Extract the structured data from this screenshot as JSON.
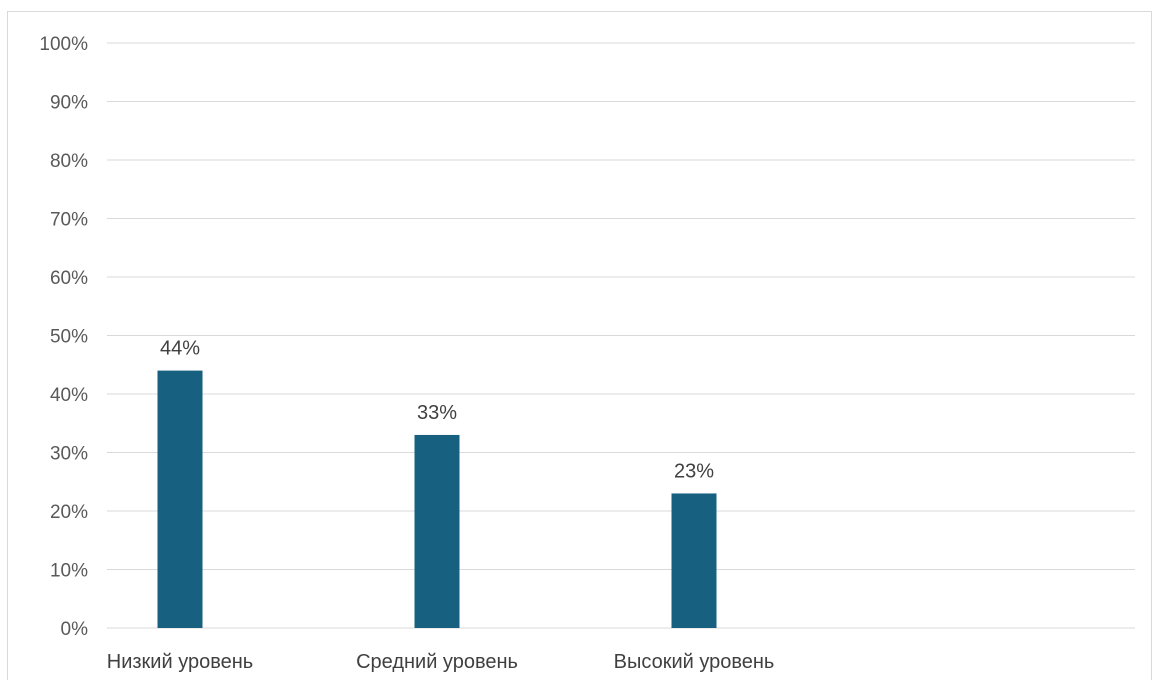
{
  "chart_data": {
    "type": "bar",
    "categories": [
      "Низкий уровень",
      "Средний уровень",
      "Высокий уровень"
    ],
    "values": [
      44,
      33,
      23
    ],
    "data_labels": [
      "44%",
      "33%",
      "23%"
    ],
    "ylim": [
      0,
      100
    ],
    "yticks": [
      0,
      10,
      20,
      30,
      40,
      50,
      60,
      70,
      80,
      90,
      100
    ],
    "ytick_labels": [
      "0%",
      "10%",
      "20%",
      "30%",
      "40%",
      "50%",
      "60%",
      "70%",
      "80%",
      "90%",
      "100%"
    ],
    "bar_color": "#17607f",
    "grid": true,
    "legend": "none"
  }
}
